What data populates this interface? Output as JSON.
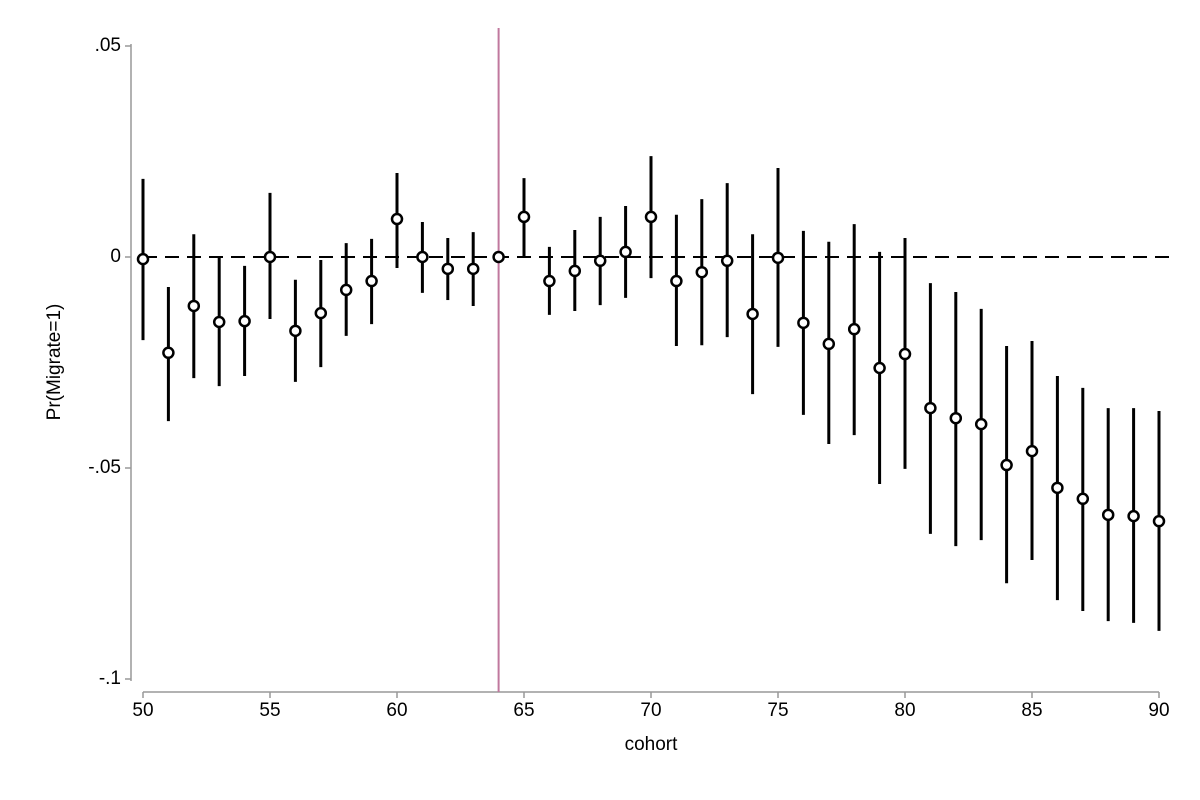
{
  "chart_data": {
    "type": "errorbar",
    "x_label": "cohort",
    "y_label": "Pr(Migrate=1)",
    "x": [
      50,
      51,
      52,
      53,
      54,
      55,
      56,
      57,
      58,
      59,
      60,
      61,
      62,
      63,
      64,
      65,
      66,
      67,
      68,
      69,
      70,
      71,
      72,
      73,
      74,
      75,
      76,
      77,
      78,
      79,
      80,
      81,
      82,
      83,
      84,
      85,
      86,
      87,
      88,
      89,
      90
    ],
    "values": [
      -0.0005,
      -0.0227,
      -0.0116,
      -0.0154,
      -0.0152,
      0,
      -0.0175,
      -0.0133,
      -0.0078,
      -0.0057,
      0.009,
      0,
      -0.0028,
      -0.0028,
      0,
      0.0095,
      -0.0057,
      -0.0033,
      -0.0009,
      0.0012,
      0.0095,
      -0.0057,
      -0.0036,
      -0.0009,
      -0.0135,
      -0.0002,
      -0.0156,
      -0.0206,
      -0.0171,
      -0.0263,
      -0.023,
      -0.0358,
      -0.0382,
      -0.0396,
      -0.0493,
      -0.046,
      -0.0547,
      -0.0573,
      -0.0611,
      -0.0614,
      -0.0626
    ],
    "ci_low": [
      -0.0197,
      -0.0389,
      -0.0287,
      -0.0306,
      -0.0282,
      -0.0147,
      -0.0296,
      -0.0261,
      -0.0187,
      -0.0159,
      -0.0026,
      -0.0085,
      -0.0102,
      -0.0116,
      0,
      0,
      -0.0137,
      -0.0128,
      -0.0114,
      -0.0097,
      -0.005,
      -0.0211,
      -0.0209,
      -0.019,
      -0.0325,
      -0.0213,
      -0.0374,
      -0.0443,
      -0.0422,
      -0.0538,
      -0.0502,
      -0.0656,
      -0.0685,
      -0.0671,
      -0.0773,
      -0.0718,
      -0.0813,
      -0.0839,
      -0.0863,
      -0.0867,
      -0.0886
    ],
    "ci_high": [
      0.0185,
      -0.0071,
      0.0054,
      0,
      -0.0021,
      0.0152,
      -0.0054,
      -0.0007,
      0.0033,
      0.0043,
      0.0199,
      0.0083,
      0.0045,
      0.0059,
      0,
      0.0187,
      0.0024,
      0.0064,
      0.0095,
      0.0121,
      0.0239,
      0.01,
      0.0137,
      0.0175,
      0.0054,
      0.0211,
      0.0062,
      0.0036,
      0.0078,
      0.0012,
      0.0045,
      -0.0062,
      -0.0083,
      -0.0123,
      -0.0211,
      -0.0199,
      -0.0282,
      -0.031,
      -0.0358,
      -0.0358,
      -0.0365
    ],
    "color": "#000000",
    "xlim": [
      50,
      90
    ],
    "xticks": [
      50,
      55,
      60,
      65,
      70,
      75,
      80,
      85,
      90
    ],
    "ylim": [
      -0.1,
      0.05
    ],
    "yticks": [
      {
        "value": 0.05,
        "label": ".05"
      },
      {
        "value": 0,
        "label": "0"
      },
      {
        "value": -0.05,
        "label": "-.05"
      },
      {
        "value": -0.1,
        "label": "-.1"
      }
    ],
    "reference_x": 64,
    "reference_x_color": "#c0789e",
    "reference_y": 0,
    "reference_y_color": "#000000"
  }
}
